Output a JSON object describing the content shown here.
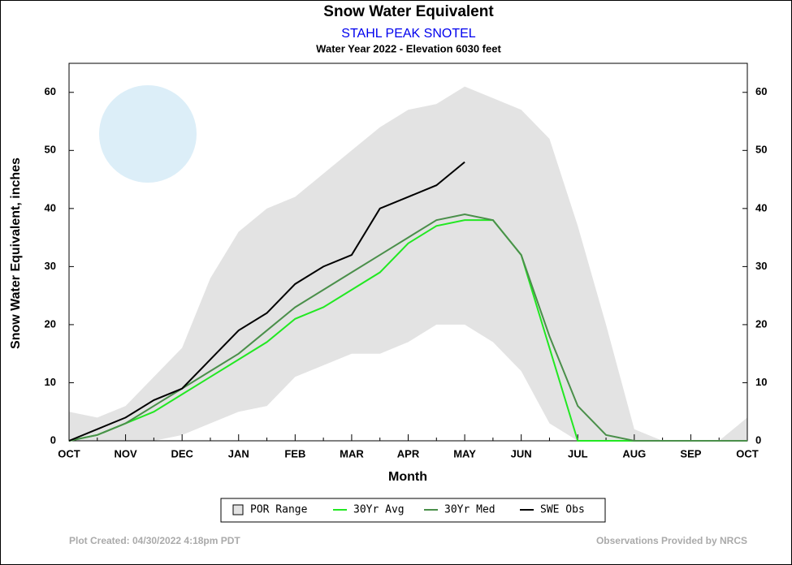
{
  "chart_data": {
    "type": "line",
    "title": "Snow Water Equivalent",
    "subtitle": "STAHL PEAK SNOTEL",
    "subtitle2": "Water Year 2022 -  Elevation 6030 feet",
    "x_label": "Month",
    "y_label": "Snow Water Equivalent, inches",
    "footer_left": "Plot Created: 04/30/2022 4:18pm PDT",
    "footer_right": "Observations Provided by NRCS",
    "categories": [
      "OCT",
      null,
      "NOV",
      null,
      "DEC",
      null,
      "JAN",
      null,
      "FEB",
      null,
      "MAR",
      null,
      "APR",
      null,
      "MAY",
      null,
      "JUN",
      null,
      "JUL",
      null,
      "AUG",
      null,
      "SEP",
      null,
      "OCT"
    ],
    "ylim": [
      0,
      65
    ],
    "yticks": [
      0,
      10,
      20,
      30,
      40,
      50,
      60
    ],
    "range": {
      "name": "POR Range",
      "color": "#e3e3e3",
      "high": [
        5,
        4,
        6,
        11,
        16,
        28,
        36,
        40,
        42,
        46,
        50,
        54,
        57,
        58,
        61,
        59,
        57,
        52,
        37,
        20,
        2,
        0,
        0,
        0,
        4
      ],
      "low": [
        0,
        0,
        0,
        0,
        1,
        3,
        5,
        6,
        11,
        13,
        15,
        15,
        17,
        20,
        20,
        17,
        12,
        3,
        0,
        0,
        0,
        0,
        0,
        0,
        0
      ]
    },
    "series": [
      {
        "name": "30Yr Avg",
        "color": "#22e822",
        "values": [
          0,
          1,
          3,
          5,
          8,
          11,
          14,
          17,
          21,
          23,
          26,
          29,
          34,
          37,
          38,
          38,
          32,
          16,
          0,
          0,
          0,
          0,
          0,
          0,
          0
        ]
      },
      {
        "name": "30Yr Med",
        "color": "#4a8f4a",
        "values": [
          0,
          1,
          3,
          6,
          9,
          12,
          15,
          19,
          23,
          26,
          29,
          32,
          35,
          38,
          39,
          38,
          32,
          18,
          6,
          1,
          0,
          0,
          0,
          0,
          0
        ]
      },
      {
        "name": "SWE Obs",
        "color": "#000000",
        "values": [
          0,
          2,
          4,
          7,
          9,
          14,
          19,
          22,
          27,
          30,
          32,
          40,
          42,
          44,
          48,
          null,
          null,
          null,
          null,
          null,
          null,
          null,
          null,
          null,
          null
        ]
      }
    ]
  }
}
